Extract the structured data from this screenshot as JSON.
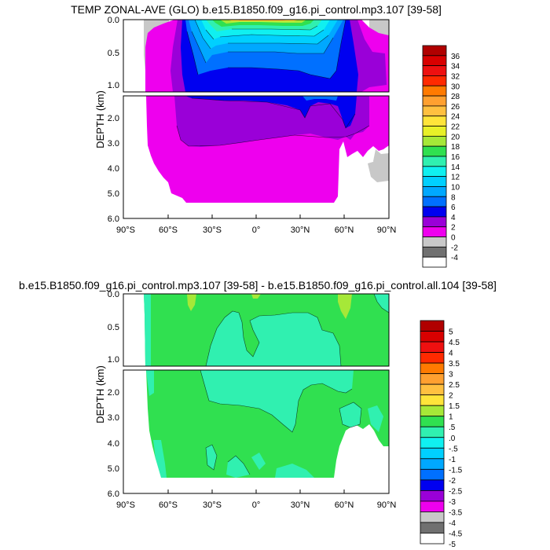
{
  "chart_data": [
    {
      "type": "heatmap",
      "title": "TEMP ZONAL-AVE (GLO) b.e15.B1850.f09_g16.pi_control.mp3.107 [39-58]",
      "xlabel": "",
      "ylabel": "DEPTH (km)",
      "x_ticks": [
        "90°S",
        "60°S",
        "30°S",
        "0°",
        "30°N",
        "60°N",
        "90°N"
      ],
      "x_range": [
        -90,
        90
      ],
      "y_ticks_upper": [
        "0.0",
        "0.5",
        "1.0"
      ],
      "y_ticks_lower": [
        "2.0",
        "3.0",
        "4.0",
        "5.0",
        "6.0"
      ],
      "y_range_upper": [
        0,
        1.1
      ],
      "y_range_lower": [
        1.1,
        6.0
      ],
      "legend_placement": "right",
      "colorbar": {
        "labels": [
          "36",
          "34",
          "32",
          "30",
          "28",
          "26",
          "24",
          "22",
          "20",
          "18",
          "16",
          "14",
          "12",
          "10",
          "8",
          "6",
          "4",
          "2",
          "0",
          "-2",
          "-4"
        ],
        "colors": [
          "#b00000",
          "#d80000",
          "#ee1010",
          "#ff2a00",
          "#ff7a00",
          "#ffa030",
          "#ffc040",
          "#ffe43a",
          "#e8f028",
          "#a6e838",
          "#30e050",
          "#30f0b0",
          "#10f0f0",
          "#00d0ff",
          "#00a8ff",
          "#0070ff",
          "#0000f0",
          "#9a00d8",
          "#ee00ee",
          "#c8c8c8",
          "#707070",
          "#ffffff"
        ]
      }
    },
    {
      "type": "heatmap",
      "title": "b.e15.B1850.f09_g16.pi_control.mp3.107 [39-58] - b.e15.B1850.f09_g16.pi_control.all.104 [39-58]",
      "xlabel": "",
      "ylabel": "DEPTH (km)",
      "x_ticks": [
        "90°S",
        "60°S",
        "30°S",
        "0°",
        "30°N",
        "60°N",
        "90°N"
      ],
      "x_range": [
        -90,
        90
      ],
      "y_ticks_upper": [
        "0.0",
        "0.5",
        "1.0"
      ],
      "y_ticks_lower": [
        "2.0",
        "3.0",
        "4.0",
        "5.0",
        "6.0"
      ],
      "y_range_upper": [
        0,
        1.1
      ],
      "y_range_lower": [
        1.1,
        6.0
      ],
      "legend_placement": "right",
      "colorbar": {
        "labels": [
          "5",
          "4.5",
          "4",
          "3.5",
          "3",
          "2.5",
          "2",
          "1.5",
          "1",
          ".5",
          ".0",
          "-.5",
          "-1",
          "-1.5",
          "-2",
          "-2.5",
          "-3",
          "-3.5",
          "-4",
          "-4.5",
          "-5"
        ],
        "colors": [
          "#b00000",
          "#d80000",
          "#ee1010",
          "#ff2a00",
          "#ff7a00",
          "#ffa030",
          "#ffc040",
          "#ffe43a",
          "#a6e838",
          "#30e050",
          "#30f0b0",
          "#10f0f0",
          "#00d0ff",
          "#00a8ff",
          "#0070ff",
          "#0000f0",
          "#9a00d8",
          "#ee00ee",
          "#c8c8c8",
          "#707070",
          "#ffffff"
        ]
      }
    }
  ]
}
